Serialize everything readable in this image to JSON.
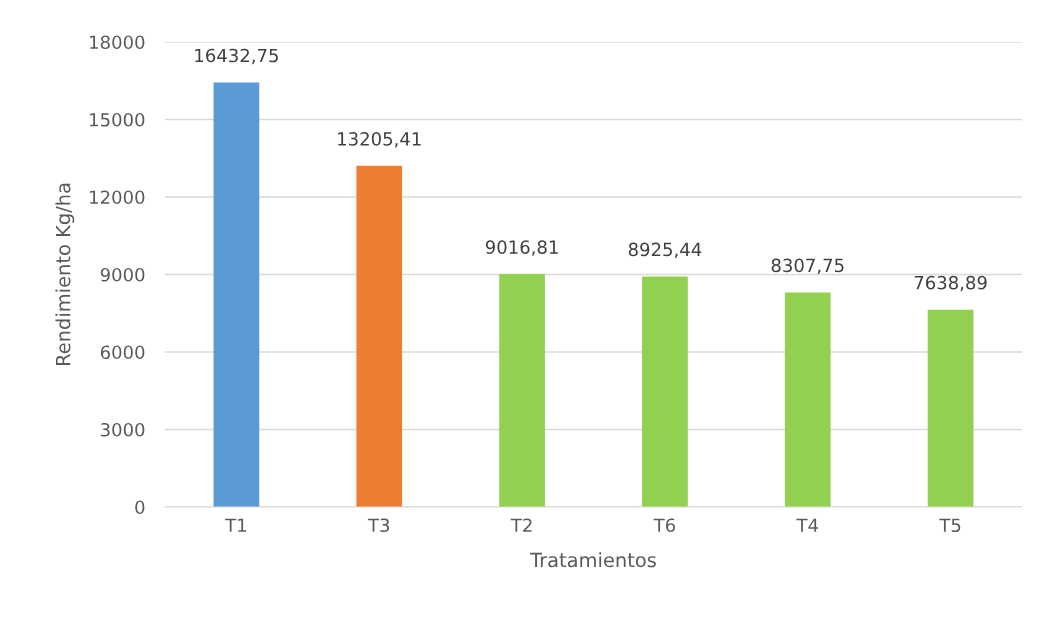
{
  "chart_data": {
    "type": "bar",
    "xlabel": "Tratamientos",
    "ylabel": "Rendimiento Kg/ha",
    "categories": [
      "T1",
      "T3",
      "T2",
      "T6",
      "T4",
      "T5"
    ],
    "values": [
      16432.75,
      13205.41,
      9016.81,
      8925.44,
      8307.75,
      7638.89
    ],
    "value_labels": [
      "16432,75",
      "13205,41",
      "9016,81",
      "8925,44",
      "8307,75",
      "7638,89"
    ],
    "colors": [
      "#5b9bd5",
      "#ed7d31",
      "#92d050",
      "#92d050",
      "#92d050",
      "#92d050"
    ],
    "ylim": [
      0,
      18000
    ],
    "yticks": [
      0,
      3000,
      6000,
      9000,
      12000,
      15000,
      18000
    ],
    "grid": "y"
  }
}
